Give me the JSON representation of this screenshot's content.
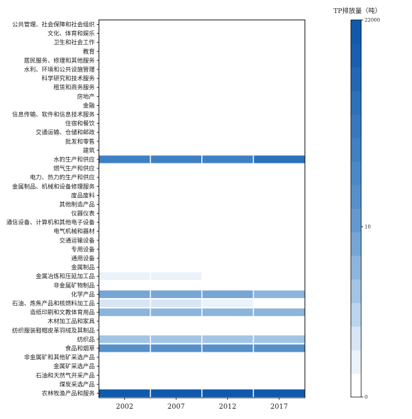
{
  "chart_data": {
    "type": "heatmap",
    "title": "",
    "xlabel": "",
    "ylabel": "",
    "x": [
      "2002",
      "2007",
      "2012",
      "2017"
    ],
    "y": [
      "公共管理、社会保障和社会组织",
      "文化、体育和娱乐",
      "卫生和社会工作",
      "教育",
      "居民服务、修理和其他服务",
      "水利、环境和公共设施管理",
      "科学研究和技术服务",
      "租赁和商务服务",
      "房地产",
      "金融",
      "信息传输、软件和信息技术服务",
      "住宿和餐饮",
      "交通运输、仓储和邮政",
      "批发和零售",
      "建筑",
      "水的生产和供应",
      "燃气生产和供应",
      "电力、热力的生产和供应",
      "金属制品、机械和设备修理服务",
      "废品废料",
      "其他制造产品",
      "仪器仪表",
      "通信设备、计算机和其他电子设备",
      "电气机械和器材",
      "交通运输设备",
      "专用设备",
      "通用设备",
      "金属制品",
      "金属冶炼和压延加工品",
      "非金属矿物制品",
      "化学产品",
      "石油、炼焦产品和核燃料加工品",
      "造纸印刷和文教体育用品",
      "木材加工品和家具",
      "纺织服装鞋帽皮革羽绒及其制品",
      "纺织品",
      "食品和烟草",
      "非金属矿和其他矿采选产品",
      "金属矿采选产品",
      "石油和天然气开采产品",
      "煤炭采选产品",
      "农林牧渔产品和服务"
    ],
    "values": [
      [
        0,
        0,
        0,
        0
      ],
      [
        0,
        0,
        0,
        0
      ],
      [
        0,
        0,
        0,
        0
      ],
      [
        0,
        0,
        0,
        0
      ],
      [
        0,
        0,
        0,
        0
      ],
      [
        0,
        0,
        0,
        0
      ],
      [
        0,
        0,
        0,
        0
      ],
      [
        0,
        0,
        0,
        0
      ],
      [
        0,
        0,
        0,
        0
      ],
      [
        0,
        0,
        0,
        0
      ],
      [
        0,
        0,
        0,
        0
      ],
      [
        0,
        0,
        0,
        0
      ],
      [
        0,
        0,
        0,
        0
      ],
      [
        0,
        0,
        0,
        0
      ],
      [
        0,
        0,
        0,
        0
      ],
      [
        900,
        1000,
        950,
        3000
      ],
      [
        0,
        0,
        0,
        0
      ],
      [
        0,
        0,
        0,
        0
      ],
      [
        0,
        0,
        0,
        0
      ],
      [
        0,
        0,
        0,
        0
      ],
      [
        0,
        0,
        0,
        0
      ],
      [
        0,
        0,
        0,
        0
      ],
      [
        0,
        0,
        0,
        0
      ],
      [
        0,
        0,
        0,
        0
      ],
      [
        0,
        0,
        0,
        0
      ],
      [
        0,
        0,
        0,
        0
      ],
      [
        0,
        0,
        0,
        0
      ],
      [
        0,
        0,
        0,
        0
      ],
      [
        1.5,
        1.5,
        0,
        0
      ],
      [
        0,
        0,
        0,
        0
      ],
      [
        40,
        40,
        40,
        25
      ],
      [
        3,
        3,
        1.5,
        0
      ],
      [
        30,
        30,
        30,
        30
      ],
      [
        0,
        0,
        0,
        0
      ],
      [
        0,
        0,
        0,
        0
      ],
      [
        18,
        18,
        18,
        18
      ],
      [
        200,
        200,
        200,
        200
      ],
      [
        0,
        0,
        0,
        0
      ],
      [
        0,
        0,
        0,
        0
      ],
      [
        0,
        0,
        0,
        0
      ],
      [
        0,
        0,
        0,
        0
      ],
      [
        22000,
        22000,
        22000,
        22000
      ]
    ],
    "colorbar": {
      "title": "TP排放量（吨）",
      "ticks": [
        "22000",
        "10",
        "0"
      ],
      "scale": "log",
      "range": [
        0,
        22000
      ],
      "colors": [
        "#ffffff",
        "#eaf2fa",
        "#d7e5f5",
        "#bcd5ec",
        "#a3c4e4",
        "#8cb5dd",
        "#76a6d6",
        "#6399cf",
        "#5590cb",
        "#4a89c8",
        "#3e80c4",
        "#3479c0",
        "#2b71bb",
        "#2168b5",
        "#175fb0",
        "#105aad"
      ]
    },
    "grid": false,
    "legend": "colorbar-right"
  }
}
